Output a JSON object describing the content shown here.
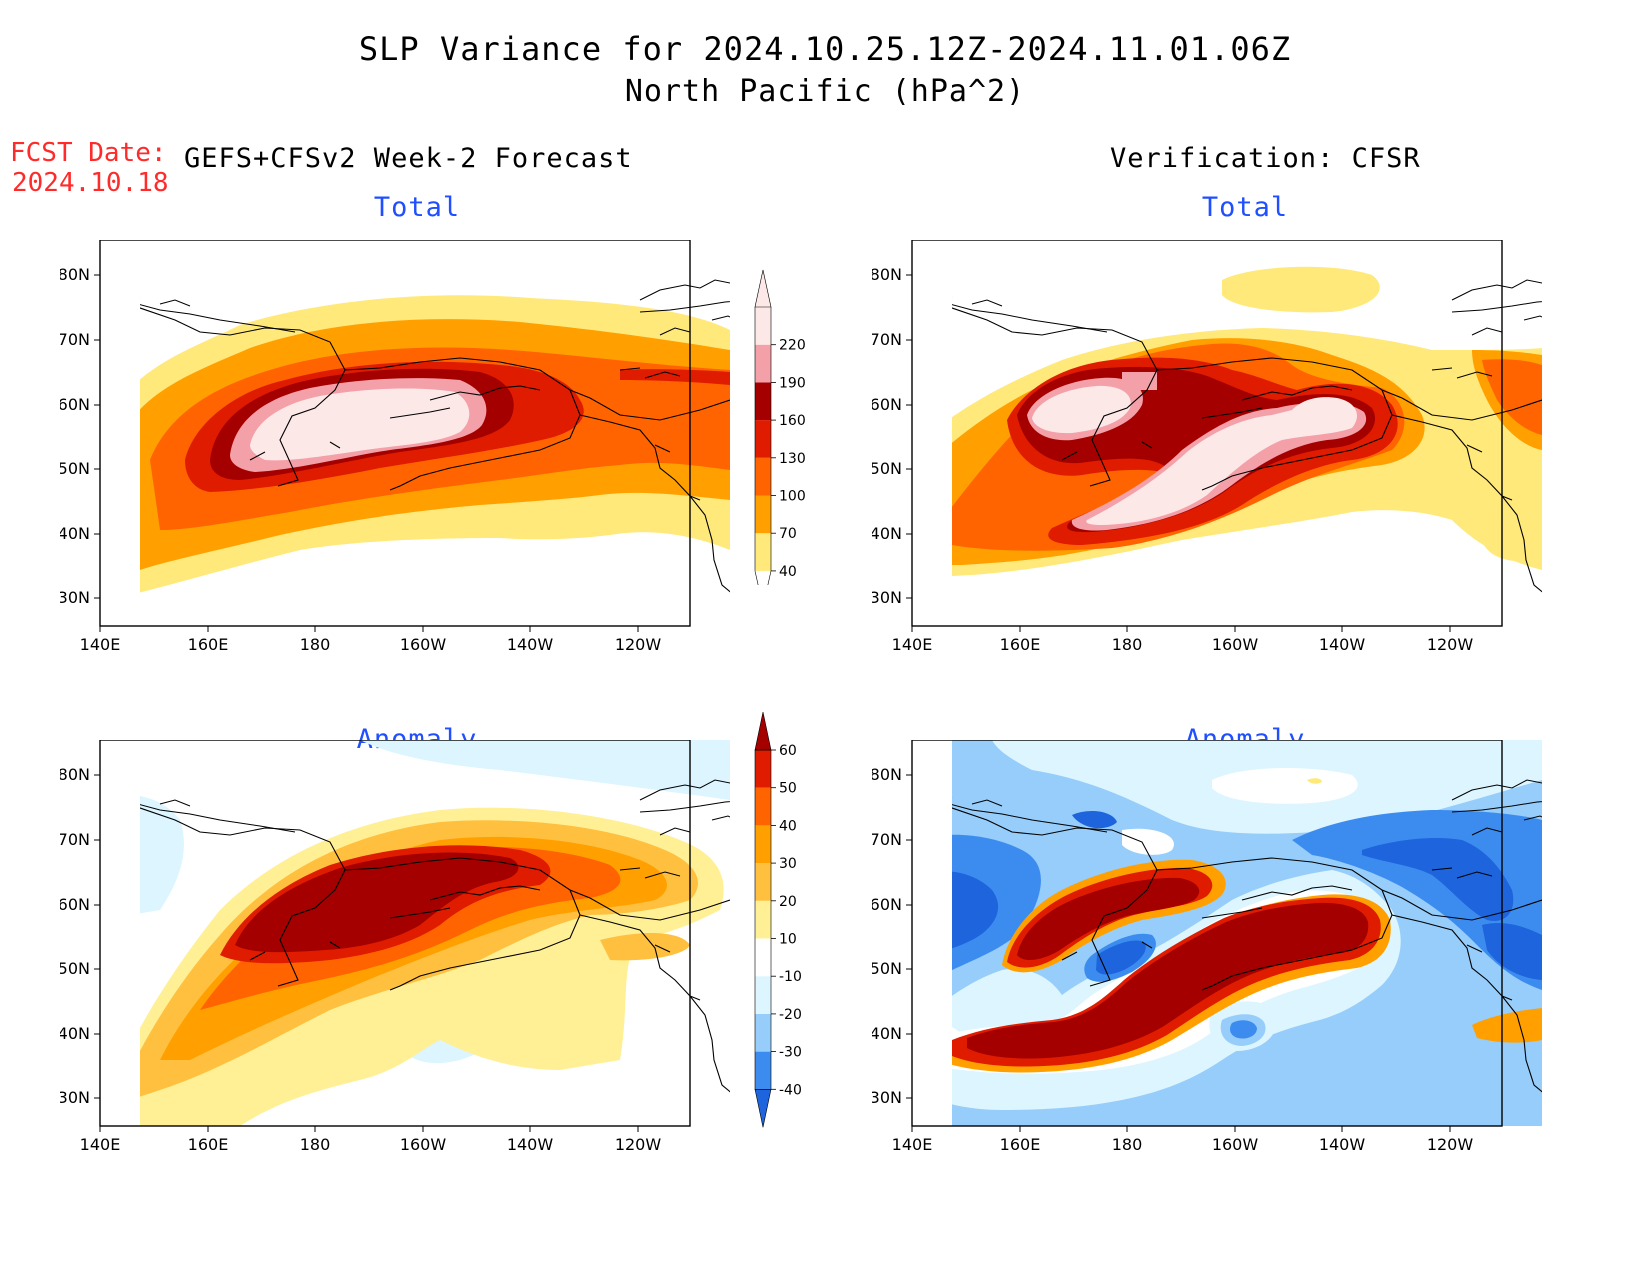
{
  "header": {
    "title_line1": "SLP Variance for 2024.10.25.12Z-2024.11.01.06Z",
    "title_line2": "North Pacific (hPa^2)",
    "fcst_label": "FCST Date:",
    "fcst_date": "2024.10.18",
    "left_heading": "GEFS+CFSv2 Week-2 Forecast",
    "right_heading": "Verification: CFSR"
  },
  "panels": {
    "forecast_total_title": "Total",
    "forecast_anomaly_title": "Anomaly",
    "verification_total_title": "Total",
    "verification_anomaly_title": "Anomaly"
  },
  "axes": {
    "lat_ticks": [
      "80N",
      "70N",
      "60N",
      "50N",
      "40N",
      "30N"
    ],
    "lon_ticks": [
      "140E",
      "160E",
      "180",
      "160W",
      "140W",
      "120W"
    ]
  },
  "colorbars": {
    "total": {
      "levels": [
        "40",
        "70",
        "100",
        "130",
        "160",
        "190",
        "220"
      ],
      "colors": [
        "#ffe97a",
        "#ffa000",
        "#ff6400",
        "#e01c00",
        "#a50000",
        "#f4a0a8",
        "#fde8e8"
      ]
    },
    "anomaly": {
      "levels": [
        "-40",
        "-30",
        "-20",
        "-10",
        "10",
        "20",
        "30",
        "40",
        "50",
        "60"
      ],
      "colors": [
        "#1e64dc",
        "#3c8cf0",
        "#96cdfa",
        "#dcf5ff",
        "#ffffff",
        "#fff096",
        "#ffc040",
        "#ffa000",
        "#ff6400",
        "#e01c00",
        "#a50000"
      ]
    }
  },
  "colors": {
    "title_red": "#ff2a2a",
    "panel_title_blue": "#1f4fff"
  }
}
